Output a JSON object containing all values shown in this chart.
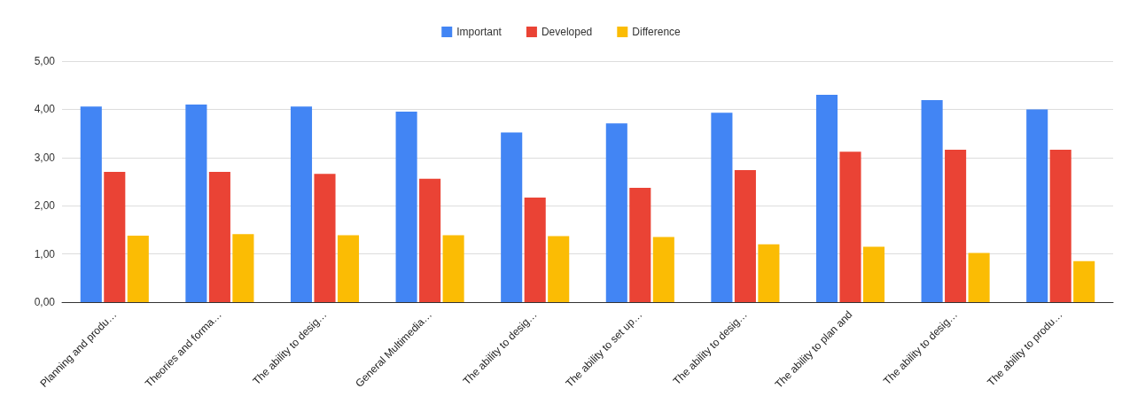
{
  "chart_data": {
    "type": "bar",
    "categories": [
      "Planning and produ…",
      "Theories and forma…",
      "The ability to desig…",
      "General Multimedia…",
      "The ability to desig…",
      "The ability to set up…",
      "The ability to desig…",
      "The ability to plan and",
      "The ability to desig…",
      "The ability to produ…"
    ],
    "series": [
      {
        "name": "Important",
        "color": "#4285f4",
        "values": [
          4.06,
          4.1,
          4.06,
          3.95,
          3.52,
          3.71,
          3.93,
          4.3,
          4.19,
          4.0
        ]
      },
      {
        "name": "Developed",
        "color": "#ea4335",
        "values": [
          2.7,
          2.7,
          2.66,
          2.56,
          2.17,
          2.37,
          2.74,
          3.12,
          3.16,
          3.16
        ]
      },
      {
        "name": "Difference",
        "color": "#fbbc04",
        "values": [
          1.38,
          1.41,
          1.39,
          1.39,
          1.37,
          1.35,
          1.2,
          1.15,
          1.02,
          0.85
        ]
      }
    ],
    "ylim": [
      0,
      5
    ],
    "yticks": [
      {
        "value": 0,
        "label": "0,00"
      },
      {
        "value": 1,
        "label": "1,00"
      },
      {
        "value": 2,
        "label": "2,00"
      },
      {
        "value": 3,
        "label": "3,00"
      },
      {
        "value": 4,
        "label": "4,00"
      },
      {
        "value": 5,
        "label": "5,00"
      }
    ],
    "grid": "y",
    "legend": "top"
  }
}
